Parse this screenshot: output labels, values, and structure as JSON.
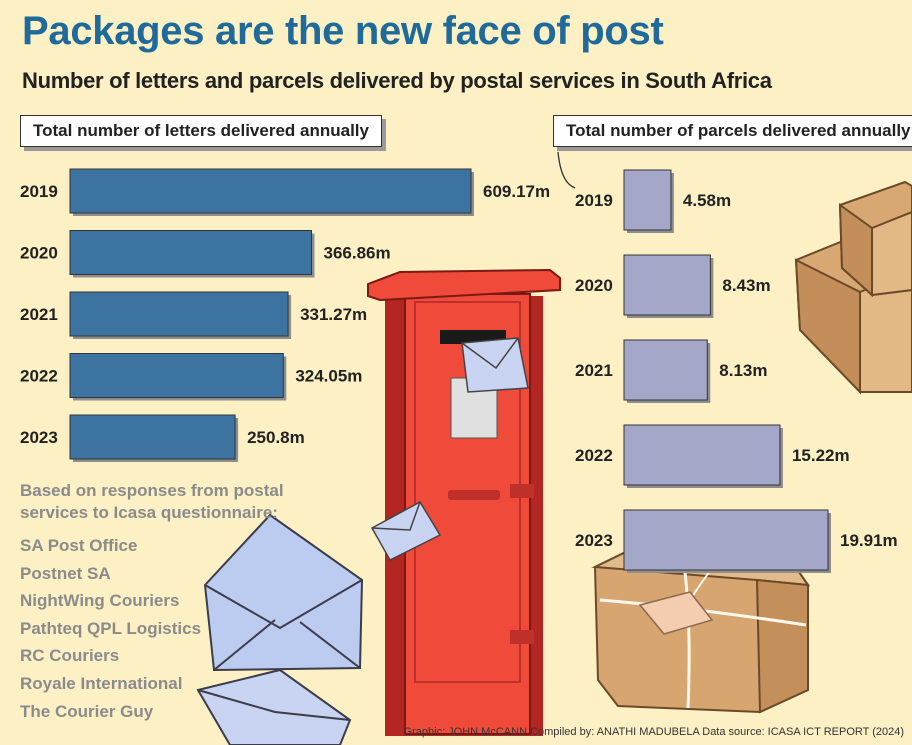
{
  "title": "Packages are the new face of post",
  "subtitle": "Number of letters and parcels delivered by postal services in South Africa",
  "chart_data": [
    {
      "type": "bar",
      "orientation": "horizontal",
      "title": "Total number of letters delivered annually",
      "categories": [
        "2019",
        "2020",
        "2021",
        "2022",
        "2023"
      ],
      "values": [
        609.17,
        366.86,
        331.27,
        324.05,
        250.8
      ],
      "value_labels": [
        "609.17m",
        "366.86m",
        "331.27m",
        "324.05m",
        "250.8m"
      ],
      "unit": "millions",
      "color": "#3d73a0"
    },
    {
      "type": "bar",
      "orientation": "horizontal",
      "title": "Total number of parcels delivered annually",
      "categories": [
        "2019",
        "2020",
        "2021",
        "2022",
        "2023"
      ],
      "values": [
        4.58,
        8.43,
        8.13,
        15.22,
        19.91
      ],
      "value_labels": [
        "4.58m",
        "8.43m",
        "8.13m",
        "15.22m",
        "19.91m"
      ],
      "unit": "millions",
      "color": "#a4a7c8"
    }
  ],
  "note": {
    "intro": "Based on responses from postal services to Icasa questionnaire:",
    "providers": [
      "SA Post Office",
      "Postnet SA",
      "NightWing Couriers",
      "Pathteq QPL Logistics",
      "RC Couriers",
      "Royale International",
      "The Courier Guy"
    ]
  },
  "credits": "Graphic: JOHN McCANN  Compiled by: ANATHI MADUBELA  Data source: ICASA ICT REPORT (2024)"
}
